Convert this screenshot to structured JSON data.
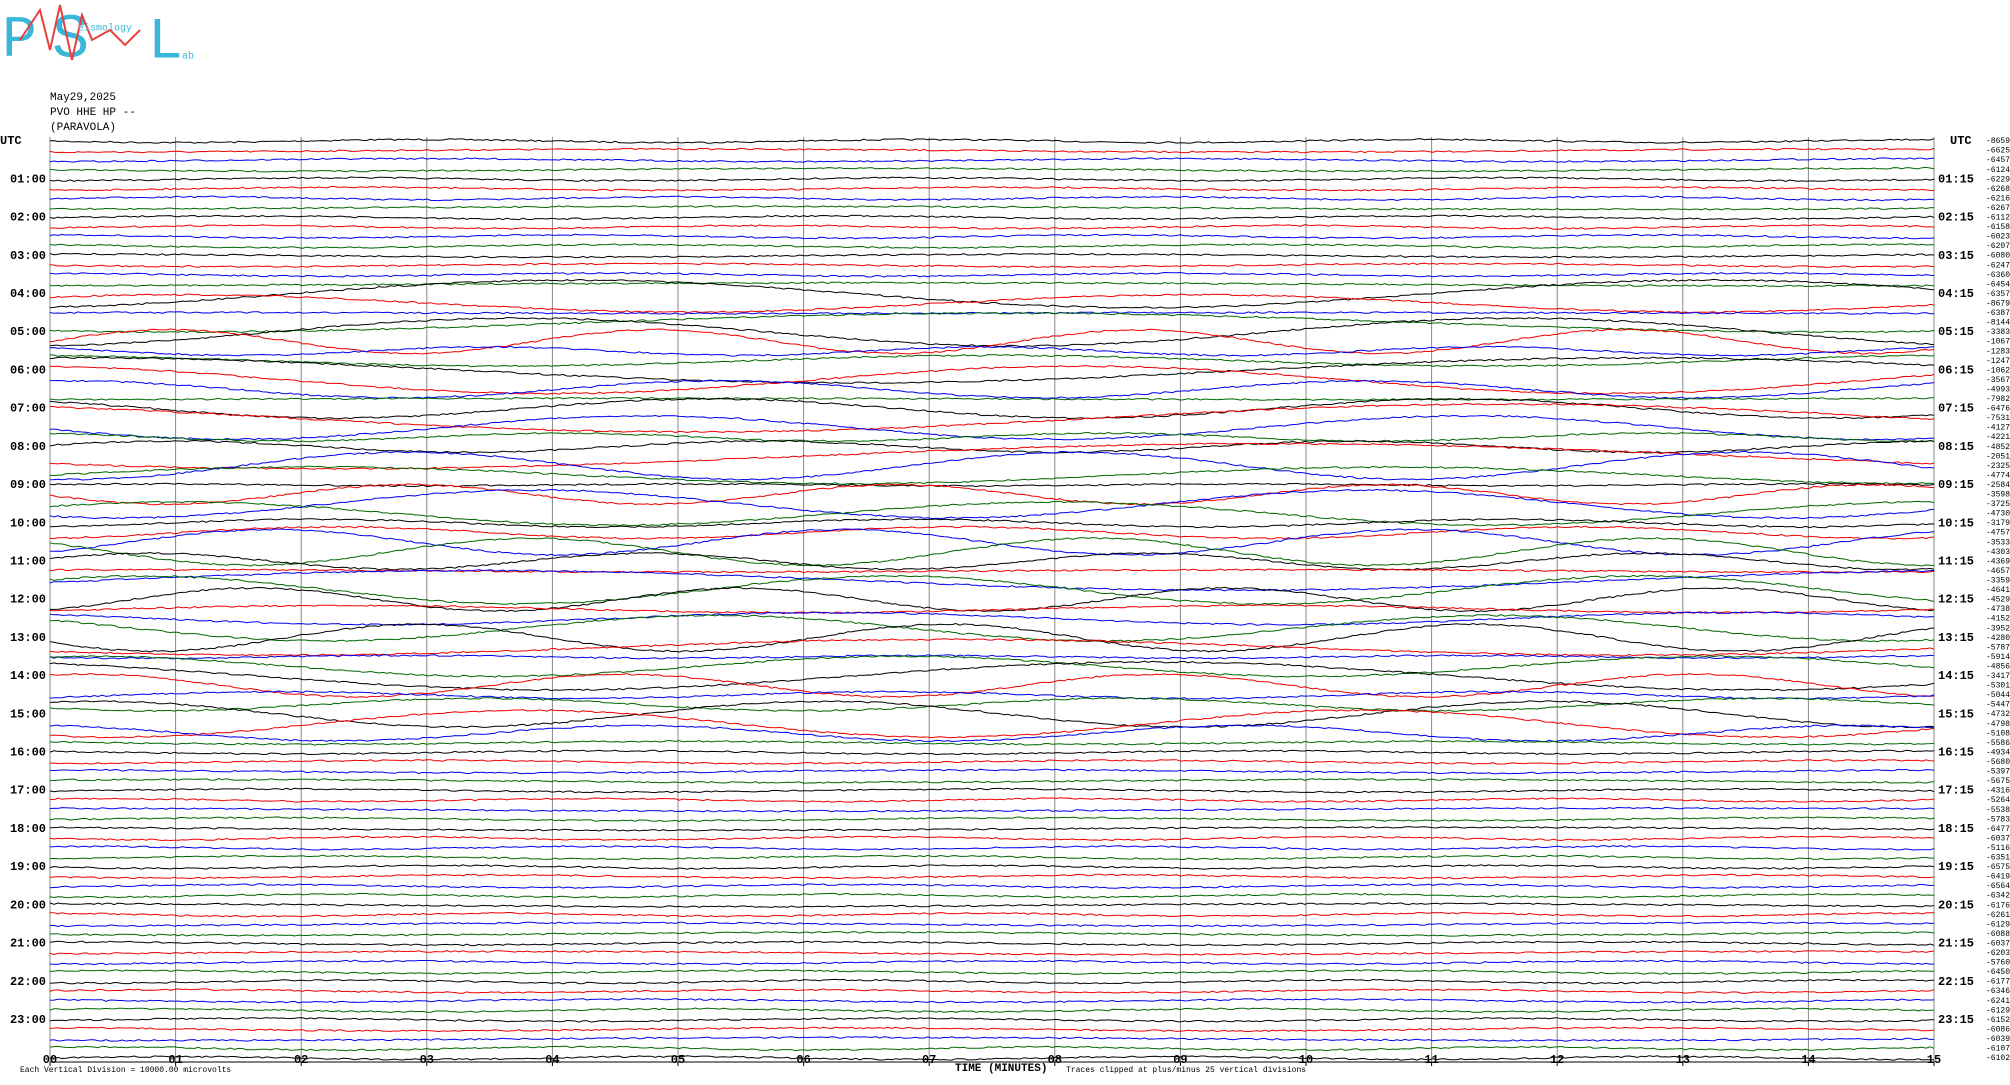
{
  "logo": {
    "letters": [
      "P",
      "S",
      "L"
    ],
    "words": [
      "eismology",
      "ab"
    ]
  },
  "header": {
    "date": "May29,2025",
    "station": "PVO HHE HP --",
    "location": "(PARAVOLA)"
  },
  "left_axis": {
    "title": "UTC",
    "labels": [
      "01:00",
      "02:00",
      "03:00",
      "04:00",
      "05:00",
      "06:00",
      "07:00",
      "08:00",
      "09:00",
      "10:00",
      "11:00",
      "12:00",
      "13:00",
      "14:00",
      "15:00",
      "16:00",
      "17:00",
      "18:00",
      "19:00",
      "20:00",
      "21:00",
      "22:00",
      "23:00"
    ]
  },
  "right_axis": {
    "title": "UTC",
    "labels": [
      "01:15",
      "02:15",
      "03:15",
      "04:15",
      "05:15",
      "06:15",
      "07:15",
      "08:15",
      "09:15",
      "10:15",
      "11:15",
      "12:15",
      "13:15",
      "14:15",
      "15:15",
      "16:15",
      "17:15",
      "18:15",
      "19:15",
      "20:15",
      "21:15",
      "22:15",
      "23:15"
    ],
    "offsets": [
      -8659,
      -6625,
      -6457,
      -6124,
      -6229,
      -6268,
      -6216,
      -6267,
      -6112,
      -6158,
      -6023,
      -6207,
      -6080,
      -6247,
      -6360,
      -6454,
      -6357,
      -8679,
      -6387,
      -8144,
      -3383,
      -10676,
      -12831,
      -12474,
      -10621,
      -3567,
      -4993,
      -7982,
      -6476,
      -7531,
      -4127,
      -4221,
      -4852,
      -2051,
      -2325,
      -4774,
      -2584,
      -3598,
      -3725,
      -4730,
      -3179,
      -4757,
      -3533,
      -4303,
      -4369,
      -4657,
      -3359,
      -4641,
      -4529,
      -4738,
      -4152,
      -3952,
      -4280,
      -5787,
      -5914,
      -4856,
      -3417,
      -5301,
      -5044,
      -5447,
      -4732,
      -4798,
      -5108,
      -5586,
      -4934,
      -5680,
      -5397,
      -5675,
      -4316,
      -5264,
      -5538,
      -5783,
      -6477,
      -6037,
      -5116,
      -6351,
      -6575,
      -6419,
      -6564,
      -6342,
      -6176,
      -6261,
      -6129,
      -6088,
      -6037,
      -6203,
      -5760,
      -6450,
      -6177,
      -6346,
      -6241,
      -6129,
      -6152,
      -6086,
      -6039,
      -6107,
      -6102
    ]
  },
  "x_axis": {
    "title": "TIME (MINUTES)",
    "ticks": [
      "00",
      "01",
      "02",
      "03",
      "04",
      "05",
      "06",
      "07",
      "08",
      "09",
      "10",
      "11",
      "12",
      "13",
      "14",
      "15"
    ]
  },
  "footer": {
    "division": "Each Vertical Division = 10000.00 microvolts",
    "clip": "Traces clipped at plus/minus 25 vertical divisions"
  }
}
